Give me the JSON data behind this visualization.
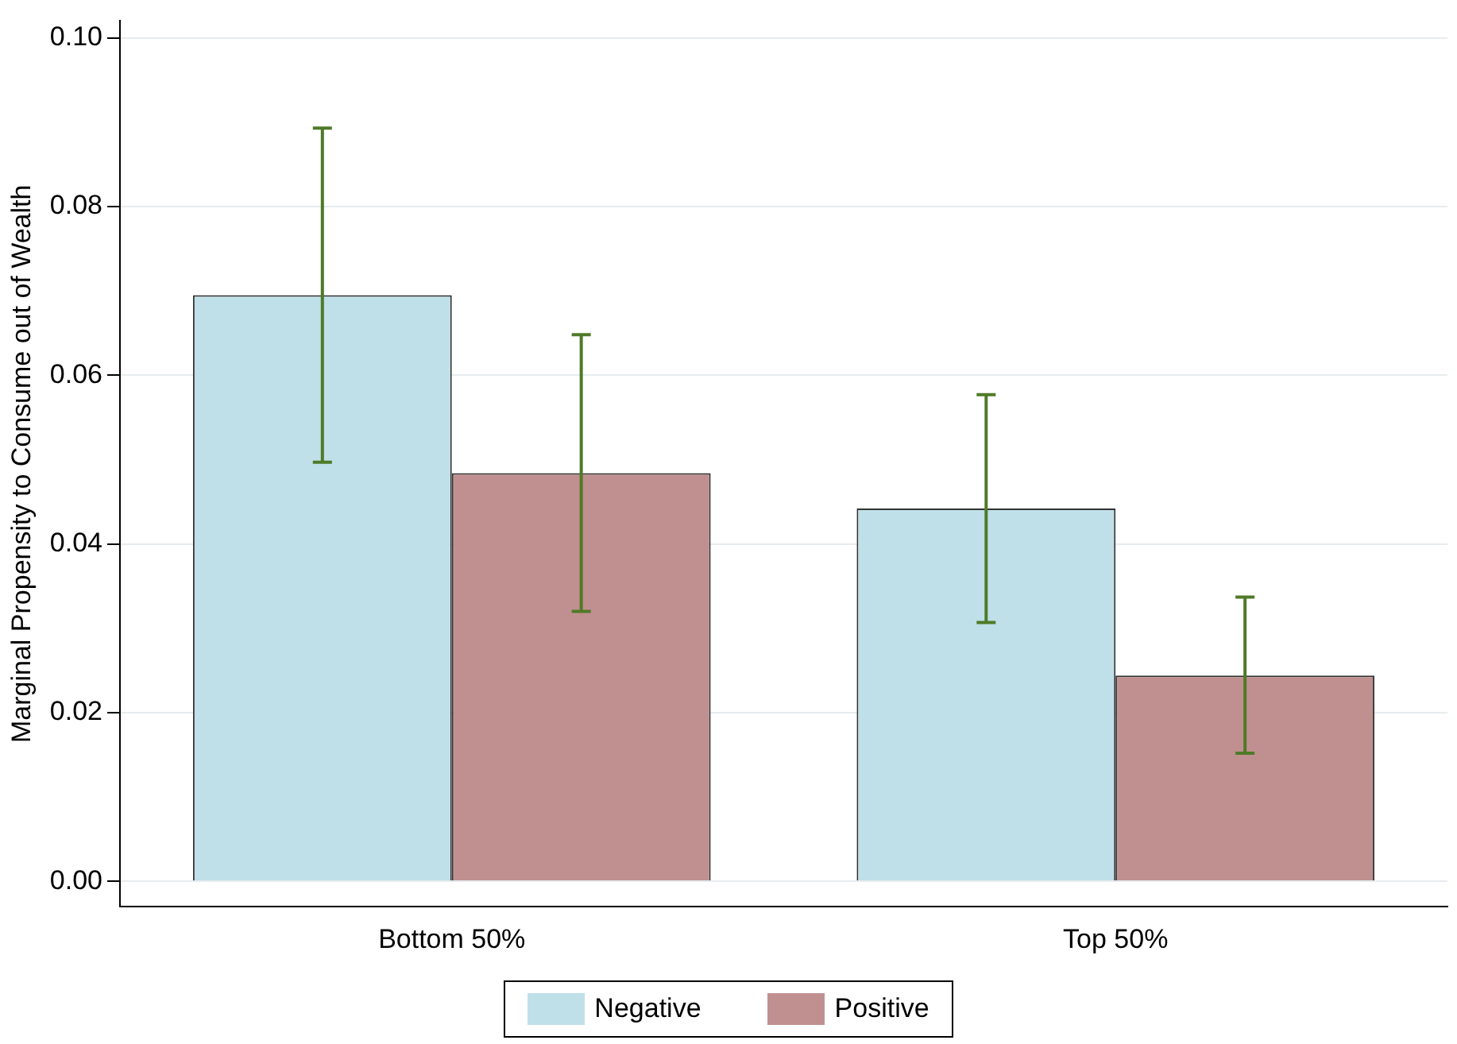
{
  "chart_data": {
    "type": "bar",
    "ylabel": "Marginal Propensity to Consume out of Wealth",
    "categories": [
      "Bottom 50%",
      "Top 50%"
    ],
    "series": [
      {
        "name": "Negative",
        "color": "#bfe0e8",
        "values": [
          0.0695,
          0.0442
        ],
        "errors": [
          [
            0.0497,
            0.0893
          ],
          [
            0.0307,
            0.0577
          ]
        ]
      },
      {
        "name": "Positive",
        "color": "#c09090",
        "values": [
          0.0484,
          0.0244
        ],
        "errors": [
          [
            0.032,
            0.0648
          ],
          [
            0.0152,
            0.0337
          ]
        ]
      }
    ],
    "ylim": [
      -0.003,
      0.102
    ],
    "yticks": [
      {
        "value": 0,
        "label": "0.00"
      },
      {
        "value": 0.02,
        "label": "0.02"
      },
      {
        "value": 0.04,
        "label": "0.04"
      },
      {
        "value": 0.06,
        "label": "0.06"
      },
      {
        "value": 0.08,
        "label": "0.08"
      },
      {
        "value": 0.1,
        "label": "0.10"
      }
    ],
    "grid": "y",
    "legend": "bottom"
  }
}
